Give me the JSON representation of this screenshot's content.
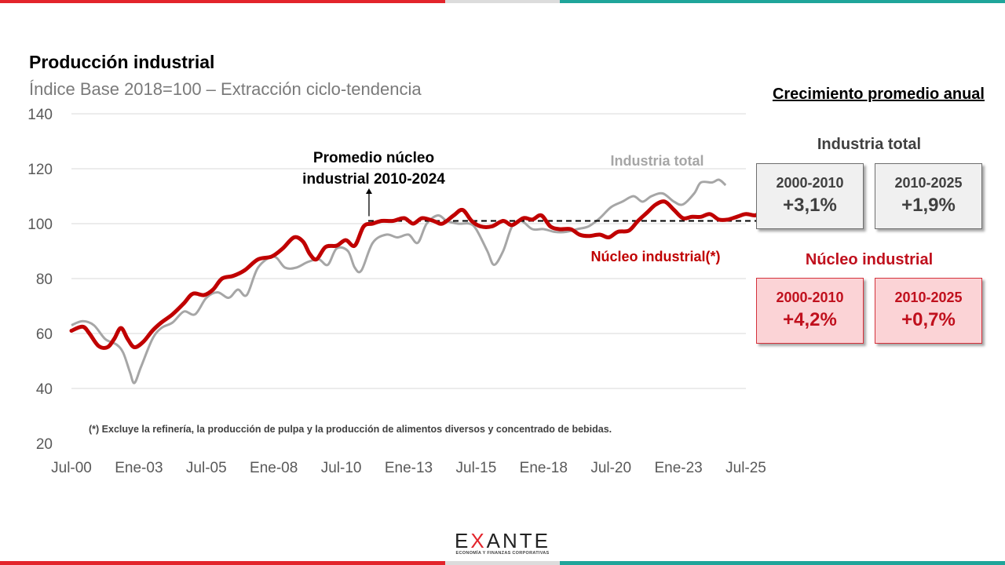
{
  "header": {
    "title": "Producción industrial",
    "subtitle": "Índice Base 2018=100 – Extracción ciclo-tendencia"
  },
  "chart_data": {
    "type": "line",
    "y_axis": {
      "min": 20,
      "max": 140,
      "ticks": [
        20,
        40,
        60,
        80,
        100,
        120,
        140
      ]
    },
    "x_axis": {
      "start": "Jul-00",
      "end": "Jul-25",
      "ticks": [
        "Jul-00",
        "Ene-03",
        "Jul-05",
        "Ene-08",
        "Jul-10",
        "Ene-13",
        "Jul-15",
        "Ene-18",
        "Jul-20",
        "Ene-23",
        "Jul-25"
      ]
    },
    "grid": true,
    "series": [
      {
        "name": "Industria total",
        "color": "#a6a6a6",
        "points": [
          [
            0.0,
            63
          ],
          [
            0.5,
            64.5
          ],
          [
            1.0,
            63
          ],
          [
            1.5,
            58
          ],
          [
            2.0,
            56
          ],
          [
            2.3,
            53
          ],
          [
            2.6,
            46
          ],
          [
            2.8,
            42
          ],
          [
            3.1,
            48
          ],
          [
            3.6,
            58
          ],
          [
            4.0,
            62
          ],
          [
            4.5,
            64
          ],
          [
            5.0,
            68
          ],
          [
            5.5,
            67
          ],
          [
            6.0,
            73
          ],
          [
            6.5,
            75
          ],
          [
            7.0,
            73
          ],
          [
            7.4,
            76
          ],
          [
            7.8,
            74
          ],
          [
            8.3,
            84
          ],
          [
            9.0,
            88
          ],
          [
            9.5,
            84
          ],
          [
            10.0,
            84
          ],
          [
            10.5,
            86
          ],
          [
            11.0,
            87
          ],
          [
            11.4,
            85
          ],
          [
            11.8,
            91
          ],
          [
            12.3,
            90
          ],
          [
            12.6,
            84
          ],
          [
            12.9,
            83
          ],
          [
            13.4,
            93
          ],
          [
            14.0,
            96
          ],
          [
            14.5,
            95
          ],
          [
            15.0,
            96
          ],
          [
            15.4,
            93
          ],
          [
            15.8,
            100
          ],
          [
            16.3,
            103
          ],
          [
            16.7,
            101
          ],
          [
            17.2,
            100
          ],
          [
            17.7,
            100
          ],
          [
            18.0,
            98
          ],
          [
            18.5,
            90
          ],
          [
            18.8,
            85
          ],
          [
            19.2,
            90
          ],
          [
            19.6,
            99
          ],
          [
            20.0,
            101
          ],
          [
            20.5,
            98
          ],
          [
            21.0,
            98
          ],
          [
            21.5,
            97
          ],
          [
            22.0,
            97
          ],
          [
            22.5,
            98
          ],
          [
            23.0,
            99
          ],
          [
            23.5,
            102
          ],
          [
            24.0,
            106
          ],
          [
            24.5,
            108
          ],
          [
            25.0,
            110
          ],
          [
            25.4,
            108
          ],
          [
            25.8,
            110
          ],
          [
            26.3,
            111
          ],
          [
            26.8,
            108
          ],
          [
            27.2,
            107
          ],
          [
            27.7,
            111
          ],
          [
            28.0,
            115
          ],
          [
            28.5,
            115
          ],
          [
            28.8,
            116
          ],
          [
            29.1,
            114
          ]
        ]
      },
      {
        "name": "Núcleo industrial(*)",
        "color": "#c00000",
        "points": [
          [
            0.0,
            61
          ],
          [
            0.5,
            62.5
          ],
          [
            0.8,
            60
          ],
          [
            1.2,
            55.5
          ],
          [
            1.6,
            55
          ],
          [
            1.9,
            58
          ],
          [
            2.2,
            62
          ],
          [
            2.5,
            58
          ],
          [
            2.8,
            55
          ],
          [
            3.2,
            57
          ],
          [
            3.6,
            61
          ],
          [
            4.0,
            64
          ],
          [
            4.5,
            67
          ],
          [
            5.0,
            71
          ],
          [
            5.4,
            74.5
          ],
          [
            5.9,
            74
          ],
          [
            6.3,
            76
          ],
          [
            6.7,
            80
          ],
          [
            7.2,
            81
          ],
          [
            7.7,
            83
          ],
          [
            8.3,
            87
          ],
          [
            8.9,
            88
          ],
          [
            9.4,
            91
          ],
          [
            9.9,
            95
          ],
          [
            10.3,
            93.5
          ],
          [
            10.6,
            89
          ],
          [
            10.9,
            87
          ],
          [
            11.3,
            91.5
          ],
          [
            11.8,
            92
          ],
          [
            12.2,
            94
          ],
          [
            12.6,
            92
          ],
          [
            13.0,
            99
          ],
          [
            13.4,
            100
          ],
          [
            13.8,
            101
          ],
          [
            14.3,
            101
          ],
          [
            14.8,
            102
          ],
          [
            15.2,
            100
          ],
          [
            15.6,
            102
          ],
          [
            16.1,
            101
          ],
          [
            16.5,
            100
          ],
          [
            17.0,
            103
          ],
          [
            17.4,
            105
          ],
          [
            17.8,
            101
          ],
          [
            18.2,
            99
          ],
          [
            18.7,
            99
          ],
          [
            19.2,
            101
          ],
          [
            19.6,
            99.5
          ],
          [
            20.1,
            102
          ],
          [
            20.5,
            101.5
          ],
          [
            20.9,
            103
          ],
          [
            21.3,
            99
          ],
          [
            21.7,
            98
          ],
          [
            22.2,
            98
          ],
          [
            22.6,
            96
          ],
          [
            23.0,
            95.5
          ],
          [
            23.5,
            96
          ],
          [
            23.9,
            95
          ],
          [
            24.3,
            97
          ],
          [
            24.8,
            97.5
          ],
          [
            25.2,
            101
          ],
          [
            25.6,
            104
          ],
          [
            26.0,
            107
          ],
          [
            26.4,
            108
          ],
          [
            26.8,
            105
          ],
          [
            27.2,
            102
          ],
          [
            27.6,
            102.5
          ],
          [
            28.0,
            102.5
          ],
          [
            28.4,
            103.5
          ],
          [
            28.8,
            101.5
          ],
          [
            29.2,
            101.5
          ],
          [
            29.6,
            102.5
          ],
          [
            30.0,
            103.5
          ],
          [
            30.4,
            103
          ],
          [
            30.6,
            104
          ]
        ]
      }
    ],
    "reference_line": {
      "value": 101,
      "from_x": 13.2,
      "to_x": 31.0,
      "label_line1": "Promedio núcleo",
      "label_line2": "industrial 2010-2024"
    },
    "annotations": {
      "total_label": "Industria total",
      "core_label": "Núcleo industrial(*)",
      "footnote": "(*) Excluye la refinería, la producción de pulpa y la producción de alimentos diversos y concentrado de bebidas."
    }
  },
  "sidebar": {
    "heading": "Crecimiento promedio anual",
    "total": {
      "label": "Industria total",
      "box1": {
        "period": "2000-2010",
        "value": "+3,1%"
      },
      "box2": {
        "period": "2010-2025",
        "value": "+1,9%"
      }
    },
    "core": {
      "label": "Núcleo industrial",
      "box1": {
        "period": "2000-2010",
        "value": "+4,2%"
      },
      "box2": {
        "period": "2010-2025",
        "value": "+0,7%"
      }
    }
  },
  "logo": {
    "name_pre": "E",
    "name_x": "X",
    "name_post": "ANTE",
    "tagline": "ECONOMÍA Y FINANZAS CORPORATIVAS"
  }
}
